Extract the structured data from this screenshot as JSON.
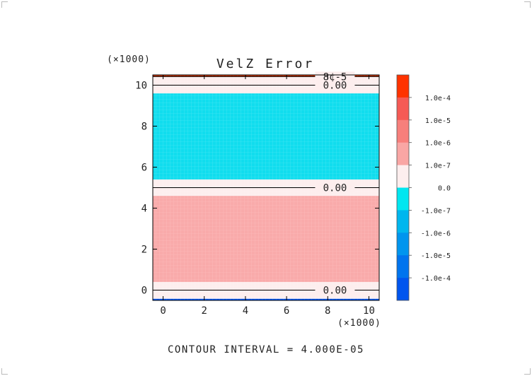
{
  "chart_data": {
    "type": "heatmap",
    "title": "VelZ Error",
    "footer": "CONTOUR INTERVAL = 4.000E-05",
    "x_multiplier_label": "(×1000)",
    "y_multiplier_label": "(×1000)",
    "xlim": [
      -0.5,
      10.5
    ],
    "ylim": [
      -0.5,
      10.5
    ],
    "x_ticks": [
      0,
      2,
      4,
      6,
      8,
      10
    ],
    "y_ticks": [
      0,
      2,
      4,
      6,
      8,
      10
    ],
    "x_tick_labels": [
      "0",
      "2",
      "4",
      "6",
      "8",
      "10"
    ],
    "y_tick_labels": [
      "0",
      "2",
      "4",
      "6",
      "8",
      "10"
    ],
    "bands": [
      {
        "y0": -0.5,
        "y1": -0.42,
        "level": "-1.0e-4",
        "color": "#0055ee"
      },
      {
        "y0": -0.42,
        "y1": 0.4,
        "level": "0.0",
        "color": "#fdeeee"
      },
      {
        "y0": 0.4,
        "y1": 4.6,
        "level": "1.0e-7",
        "color": "#f9aaaa"
      },
      {
        "y0": 4.6,
        "y1": 5.4,
        "level": "0.0",
        "color": "#fdeeee"
      },
      {
        "y0": 5.4,
        "y1": 9.6,
        "level": "-1.0e-7",
        "color": "#11ddee"
      },
      {
        "y0": 9.6,
        "y1": 10.42,
        "level": "0.0",
        "color": "#fdeeee"
      },
      {
        "y0": 10.42,
        "y1": 10.5,
        "level": "1.0e-4",
        "color": "#cc3300"
      }
    ],
    "contour_lines": [
      {
        "y": 0.0,
        "label": "0.00"
      },
      {
        "y": 5.0,
        "label": "0.00"
      },
      {
        "y": 10.0,
        "label": "0.00"
      },
      {
        "y": 10.42,
        "label": "8¢-5"
      }
    ],
    "colorbar": {
      "colors": [
        "#ff3300",
        "#f55a55",
        "#f77f7b",
        "#f9a6a4",
        "#fdeeee",
        "#00e6f0",
        "#00b6ee",
        "#0095ee",
        "#0074ee",
        "#0055ee"
      ],
      "labels": [
        "1.0e-4",
        "1.0e-5",
        "1.0e-6",
        "1.0e-7",
        "0.0",
        "-1.0e-7",
        "-1.0e-6",
        "-1.0e-5",
        "-1.0e-4"
      ]
    }
  }
}
